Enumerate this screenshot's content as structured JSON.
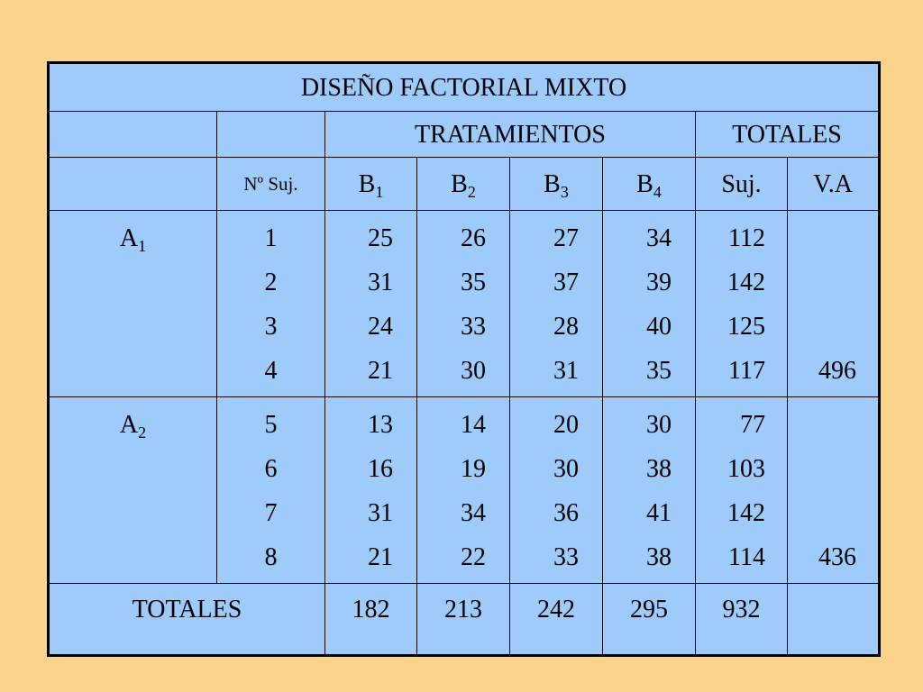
{
  "title": "DISEÑO FACTORIAL MIXTO",
  "header": {
    "tratamientos": "TRATAMIENTOS",
    "totales": "TOTALES",
    "nsuj": "Nº Suj.",
    "b_labels": [
      {
        "base": "B",
        "sub": "1"
      },
      {
        "base": "B",
        "sub": "2"
      },
      {
        "base": "B",
        "sub": "3"
      },
      {
        "base": "B",
        "sub": "4"
      }
    ],
    "suj": "Suj.",
    "va": "V.A"
  },
  "groups": [
    {
      "label": {
        "base": "A",
        "sub": "1"
      },
      "rows": [
        {
          "n": "1",
          "b": [
            "25",
            "26",
            "27",
            "34"
          ],
          "suj": "112",
          "va": ""
        },
        {
          "n": "2",
          "b": [
            "31",
            "35",
            "37",
            "39"
          ],
          "suj": "142",
          "va": ""
        },
        {
          "n": "3",
          "b": [
            "24",
            "33",
            "28",
            "40"
          ],
          "suj": "125",
          "va": ""
        },
        {
          "n": "4",
          "b": [
            "21",
            "30",
            "31",
            "35"
          ],
          "suj": "117",
          "va": "496"
        }
      ]
    },
    {
      "label": {
        "base": "A",
        "sub": "2"
      },
      "rows": [
        {
          "n": "5",
          "b": [
            "13",
            "14",
            "20",
            "30"
          ],
          "suj": "77",
          "va": ""
        },
        {
          "n": "6",
          "b": [
            "16",
            "19",
            "30",
            "38"
          ],
          "suj": "103",
          "va": ""
        },
        {
          "n": "7",
          "b": [
            "31",
            "34",
            "36",
            "41"
          ],
          "suj": "142",
          "va": ""
        },
        {
          "n": "8",
          "b": [
            "21",
            "22",
            "33",
            "38"
          ],
          "suj": "114",
          "va": "436"
        }
      ]
    }
  ],
  "totals": {
    "label": "TOTALES",
    "b": [
      "182",
      "213",
      "242",
      "295"
    ],
    "suj": "932",
    "va": ""
  }
}
